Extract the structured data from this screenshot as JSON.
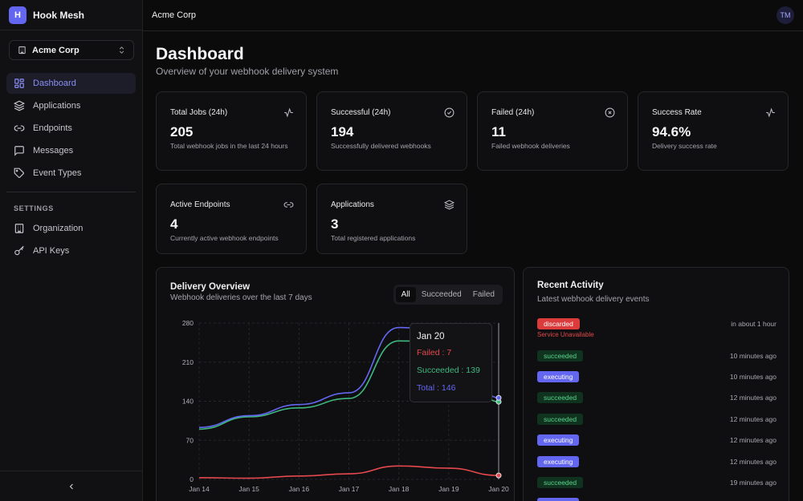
{
  "brand": {
    "initial": "H",
    "name": "Hook Mesh"
  },
  "org_selector": {
    "value": "Acme Corp"
  },
  "nav": [
    {
      "label": "Dashboard",
      "icon": "dashboard-icon",
      "active": true
    },
    {
      "label": "Applications",
      "icon": "layers-icon"
    },
    {
      "label": "Endpoints",
      "icon": "link-icon"
    },
    {
      "label": "Messages",
      "icon": "message-icon"
    },
    {
      "label": "Event Types",
      "icon": "tag-icon"
    }
  ],
  "settings": {
    "heading": "SETTINGS",
    "items": [
      {
        "label": "Organization",
        "icon": "building-icon"
      },
      {
        "label": "API Keys",
        "icon": "key-icon"
      }
    ]
  },
  "topbar": {
    "org": "Acme Corp",
    "avatar": "TM"
  },
  "page": {
    "title": "Dashboard",
    "subtitle": "Overview of your webhook delivery system"
  },
  "cards": [
    {
      "title": "Total Jobs (24h)",
      "value": "205",
      "desc": "Total webhook jobs in the last 24 hours",
      "icon": "activity-icon"
    },
    {
      "title": "Successful (24h)",
      "value": "194",
      "desc": "Successfully delivered webhooks",
      "icon": "check-circle-icon"
    },
    {
      "title": "Failed (24h)",
      "value": "11",
      "desc": "Failed webhook deliveries",
      "icon": "x-circle-icon"
    },
    {
      "title": "Success Rate",
      "value": "94.6%",
      "desc": "Delivery success rate",
      "icon": "activity-icon"
    },
    {
      "title": "Active Endpoints",
      "value": "4",
      "desc": "Currently active webhook endpoints",
      "icon": "link-icon"
    },
    {
      "title": "Applications",
      "value": "3",
      "desc": "Total registered applications",
      "icon": "layers-icon"
    }
  ],
  "delivery": {
    "title": "Delivery Overview",
    "subtitle": "Webhook deliveries over the last 7 days",
    "filters": [
      "All",
      "Succeeded",
      "Failed"
    ],
    "active_filter": "All",
    "tooltip": {
      "date": "Jan 20",
      "failed": "Failed : 7",
      "succeeded": "Succeeded : 139",
      "total": "Total : 146"
    }
  },
  "chart_data": {
    "type": "area",
    "categories": [
      "Jan 14",
      "Jan 15",
      "Jan 16",
      "Jan 17",
      "Jan 18",
      "Jan 19",
      "Jan 20"
    ],
    "series": [
      {
        "name": "Failed",
        "color": "#e5484d",
        "values": [
          3,
          2,
          6,
          10,
          24,
          20,
          7
        ]
      },
      {
        "name": "Succeeded",
        "color": "#3fb97f",
        "values": [
          90,
          112,
          128,
          145,
          248,
          246,
          139
        ]
      },
      {
        "name": "Total",
        "color": "#6366f1",
        "values": [
          93,
          114,
          134,
          155,
          272,
          266,
          146
        ]
      }
    ],
    "y_ticks": [
      0,
      70,
      140,
      210,
      280
    ],
    "ylim": [
      0,
      280
    ],
    "grid": true
  },
  "activity": {
    "title": "Recent Activity",
    "subtitle": "Latest webhook delivery events",
    "items": [
      {
        "status": "discarded",
        "time": "in about 1 hour",
        "error": "Service Unavailable"
      },
      {
        "status": "succeeded",
        "time": "10 minutes ago"
      },
      {
        "status": "executing",
        "time": "10 minutes ago"
      },
      {
        "status": "succeeded",
        "time": "12 minutes ago"
      },
      {
        "status": "succeeded",
        "time": "12 minutes ago"
      },
      {
        "status": "executing",
        "time": "12 minutes ago"
      },
      {
        "status": "executing",
        "time": "12 minutes ago"
      },
      {
        "status": "succeeded",
        "time": "19 minutes ago"
      },
      {
        "status": "executing",
        "time": ""
      }
    ]
  }
}
